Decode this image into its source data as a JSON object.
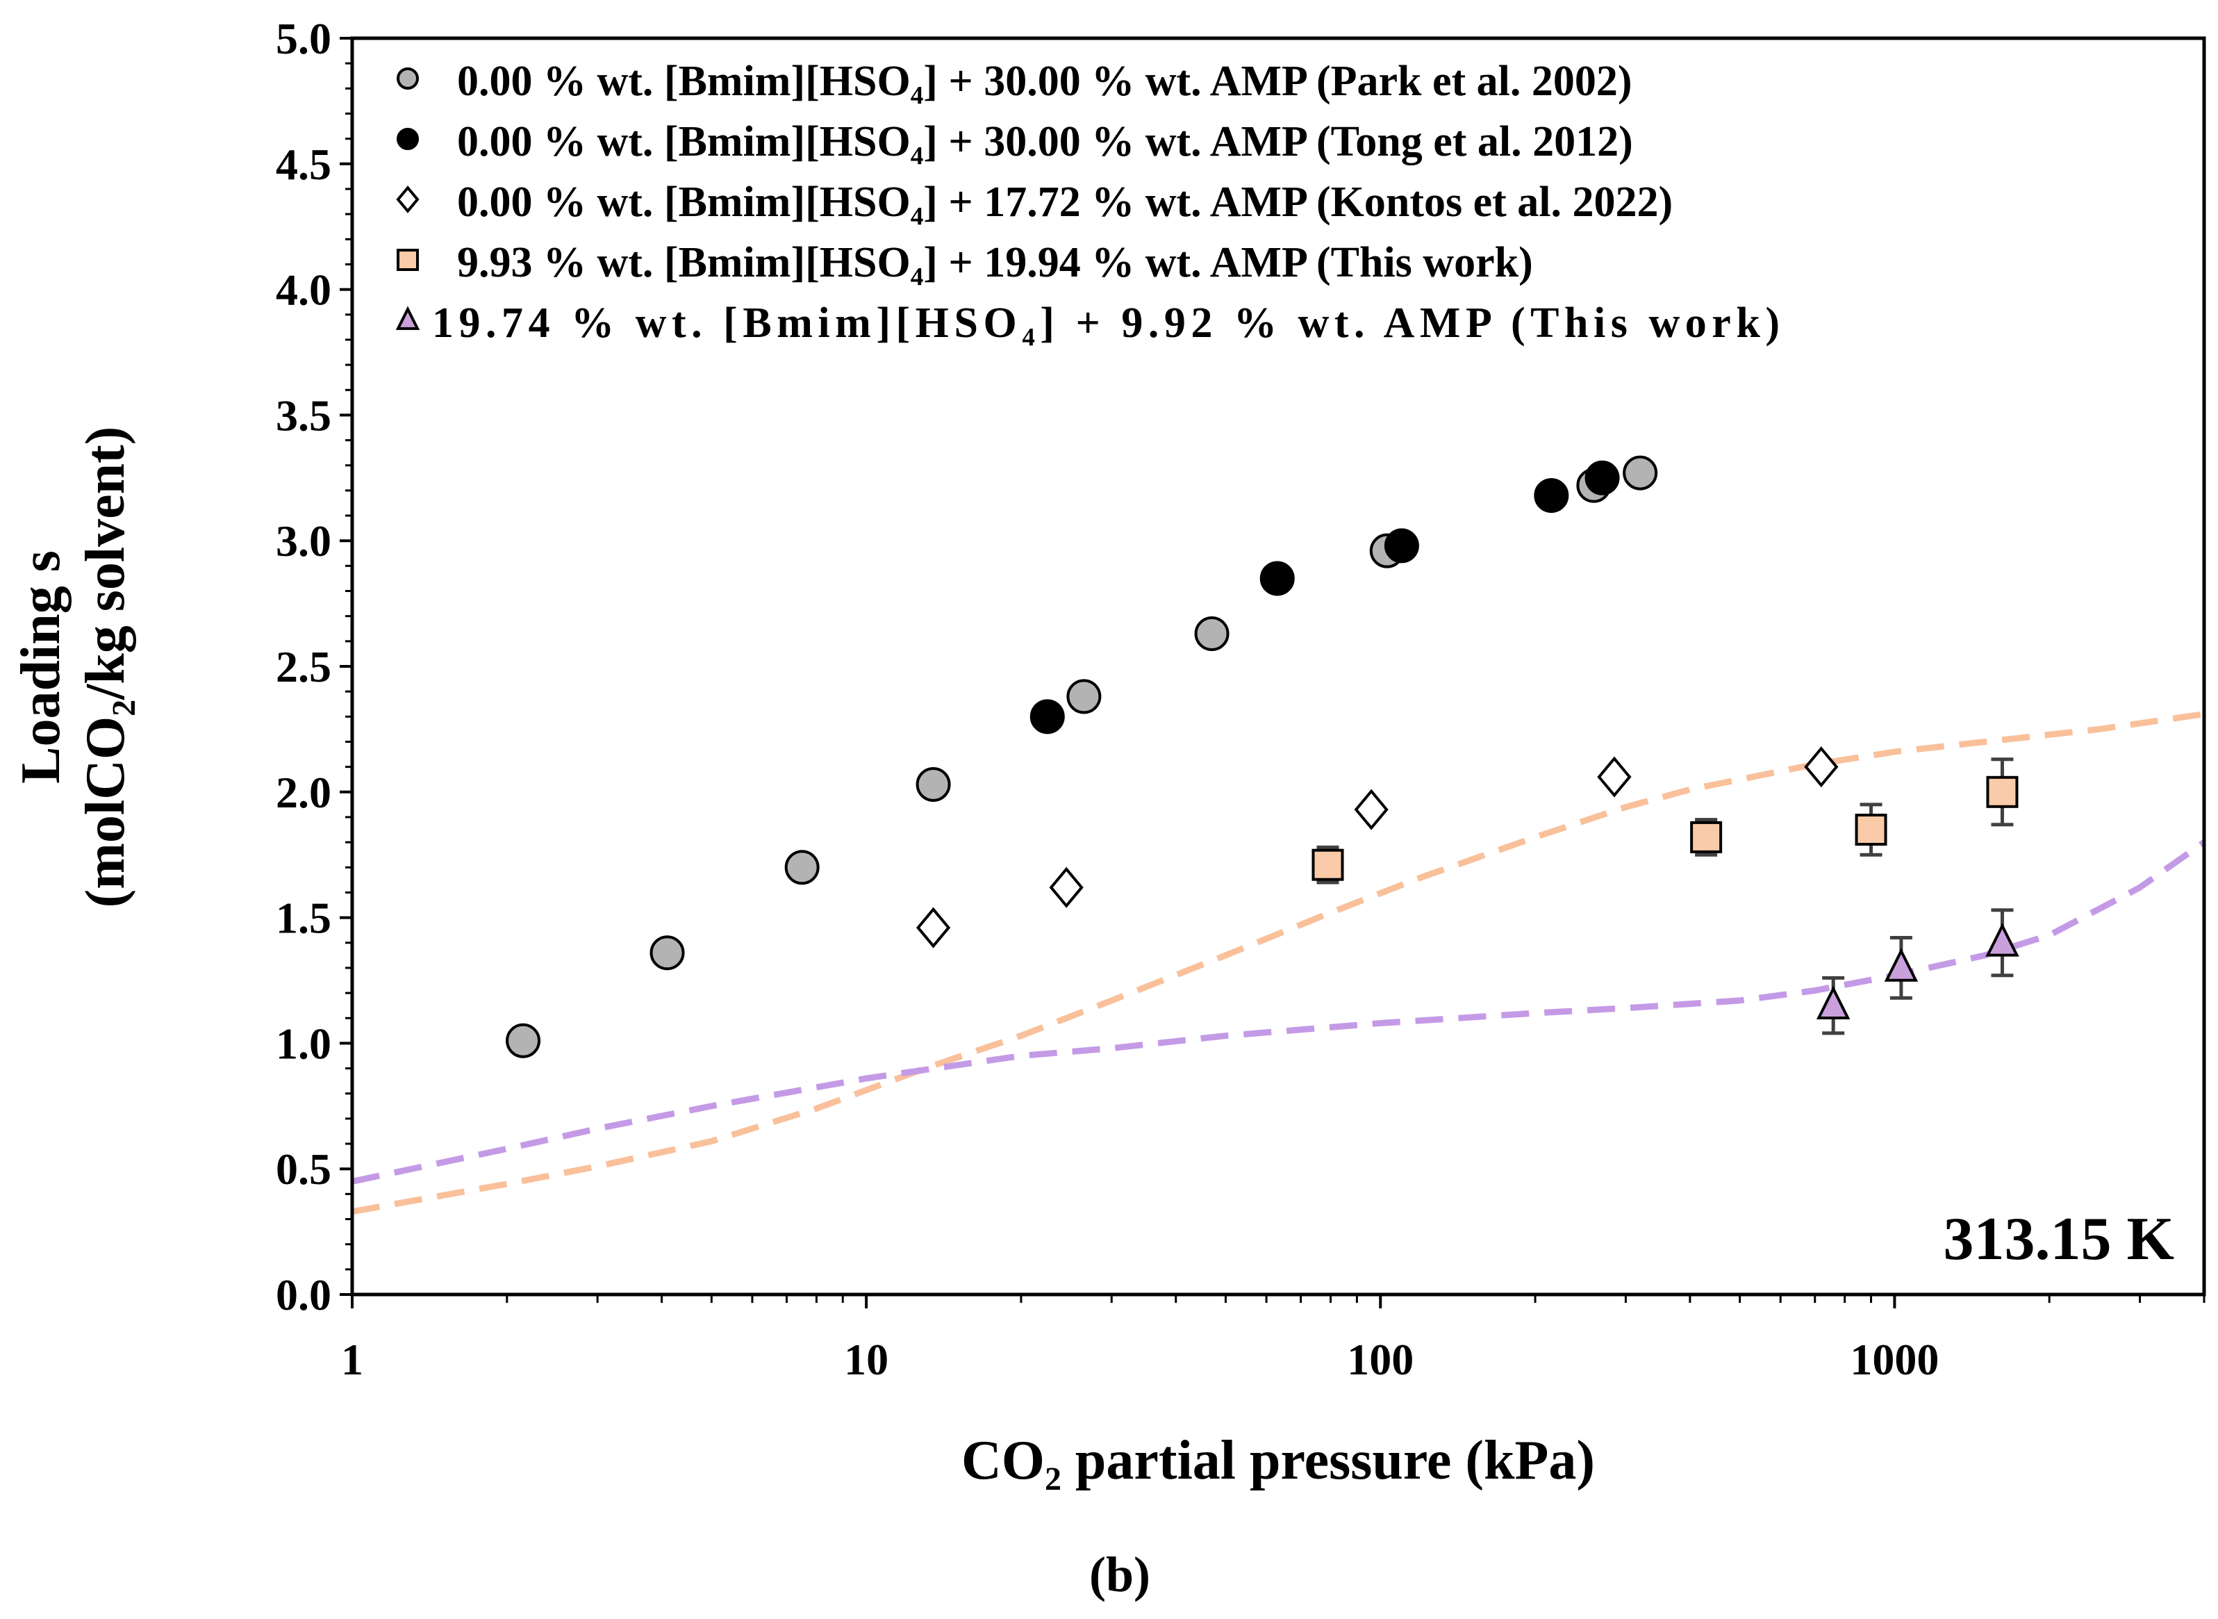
{
  "chart_data": {
    "type": "scatter",
    "title": "",
    "xlabel": "CO₂ partial pressure (kPa)",
    "ylabel": [
      "Loading s",
      "(molCO₂/kg solvent)"
    ],
    "xscale": "log",
    "xlim": [
      1,
      4000
    ],
    "ylim": [
      0,
      5
    ],
    "xticks": [
      1,
      10,
      100,
      1000
    ],
    "xtick_labels": [
      "1",
      "10",
      "100",
      "1000"
    ],
    "yticks": [
      0,
      0.5,
      1,
      1.5,
      2,
      2.5,
      3,
      3.5,
      4,
      4.5,
      5
    ],
    "ytick_labels": [
      "0.0",
      "0.5",
      "1.0",
      "1.5",
      "2.0",
      "2.5",
      "3.0",
      "3.5",
      "4.0",
      "4.5",
      "5.0"
    ],
    "grid": false,
    "legend_placement": "top-left",
    "annotation": "313.15 K",
    "caption": "(b)",
    "series": [
      {
        "name": "0.00 % wt. [Bmim][HSO₄] + 30.00 % wt. AMP (Park et al. 2002)",
        "marker": "circle",
        "fill": "#b3b3b3",
        "x": [
          2.15,
          4.1,
          7.5,
          13.5,
          26.5,
          47,
          103,
          260,
          320
        ],
        "y": [
          1.01,
          1.36,
          1.7,
          2.03,
          2.38,
          2.63,
          2.96,
          3.22,
          3.27
        ]
      },
      {
        "name": "0.00 % wt. [Bmim][HSO₄] + 30.00 % wt. AMP (Tong et al. 2012)",
        "marker": "circle",
        "fill": "#000000",
        "x": [
          22.5,
          63,
          110,
          215,
          270
        ],
        "y": [
          2.3,
          2.85,
          2.98,
          3.18,
          3.25
        ]
      },
      {
        "name": "0.00 % wt. [Bmim][HSO₄] + 17.72 % wt. AMP (Kontos et al. 2022)",
        "marker": "diamond",
        "fill": "#ffffff",
        "x": [
          13.5,
          24.5,
          96,
          285,
          720
        ],
        "y": [
          1.46,
          1.62,
          1.93,
          2.06,
          2.1
        ]
      },
      {
        "name": "9.93 % wt. [Bmim][HSO₄] + 19.94 % wt. AMP (This work)",
        "marker": "square",
        "fill": "#f9cba8",
        "x": [
          79,
          430,
          900,
          1620
        ],
        "y": [
          1.71,
          1.82,
          1.85,
          2.0
        ],
        "err": [
          0.07,
          0.07,
          0.1,
          0.13
        ]
      },
      {
        "name": "19.74 % wt. [Bmim][HSO₄] + 9.92 % wt. AMP (This work)",
        "marker": "triangle",
        "fill": "#c9a0dc",
        "x": [
          760,
          1030,
          1620
        ],
        "y": [
          1.15,
          1.3,
          1.4
        ],
        "err": [
          0.11,
          0.12,
          0.13
        ]
      }
    ],
    "model_lines": [
      {
        "name": "model-9.93",
        "color": "#f9c09a",
        "x": [
          1,
          2,
          3,
          5,
          8,
          13,
          20,
          30,
          50,
          80,
          120,
          200,
          300,
          400,
          700,
          1000,
          1500,
          2500,
          4000
        ],
        "y": [
          0.33,
          0.44,
          0.51,
          0.61,
          0.74,
          0.9,
          1.03,
          1.17,
          1.35,
          1.52,
          1.66,
          1.82,
          1.94,
          2.01,
          2.11,
          2.16,
          2.2,
          2.25,
          2.31
        ]
      },
      {
        "name": "model-19.74",
        "color": "#c49ae6",
        "x": [
          1,
          2,
          3,
          5,
          10,
          20,
          30,
          50,
          100,
          200,
          300,
          500,
          700,
          1000,
          1500,
          2000,
          3000,
          4000
        ],
        "y": [
          0.45,
          0.58,
          0.66,
          0.75,
          0.86,
          0.95,
          0.98,
          1.03,
          1.08,
          1.12,
          1.14,
          1.17,
          1.21,
          1.27,
          1.35,
          1.43,
          1.62,
          1.8
        ]
      }
    ]
  }
}
